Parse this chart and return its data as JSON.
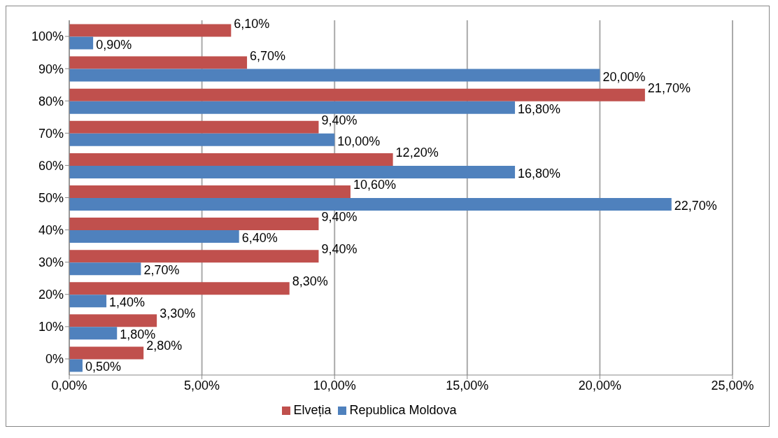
{
  "chart_data": {
    "type": "bar",
    "orientation": "horizontal",
    "categories": [
      "100%",
      "90%",
      "80%",
      "70%",
      "60%",
      "50%",
      "40%",
      "30%",
      "20%",
      "10%",
      "0%"
    ],
    "series": [
      {
        "name": "Elveția",
        "color": "#c0504d",
        "values": [
          6.1,
          6.7,
          21.7,
          9.4,
          12.2,
          10.6,
          9.4,
          9.4,
          8.3,
          3.3,
          2.8
        ],
        "value_labels": [
          "6,10%",
          "6,70%",
          "21,70%",
          "9,40%",
          "12,20%",
          "10,60%",
          "9,40%",
          "9,40%",
          "8,30%",
          "3,30%",
          "2,80%"
        ]
      },
      {
        "name": "Republica Moldova",
        "color": "#4f81bd",
        "values": [
          0.9,
          20.0,
          16.8,
          10.0,
          16.8,
          22.7,
          6.4,
          2.7,
          1.4,
          1.8,
          0.5
        ],
        "value_labels": [
          "0,90%",
          "20,00%",
          "16,80%",
          "10,00%",
          "16,80%",
          "22,70%",
          "6,40%",
          "2,70%",
          "1,40%",
          "1,80%",
          "0,50%"
        ]
      }
    ],
    "xlim": [
      0,
      25
    ],
    "xticks": [
      {
        "value": 0,
        "label": "0,00%"
      },
      {
        "value": 5,
        "label": "5,00%"
      },
      {
        "value": 10,
        "label": "10,00%"
      },
      {
        "value": 15,
        "label": "15,00%"
      },
      {
        "value": 20,
        "label": "20,00%"
      },
      {
        "value": 25,
        "label": "25,00%"
      }
    ],
    "grid": "x",
    "legend": "bottom"
  }
}
